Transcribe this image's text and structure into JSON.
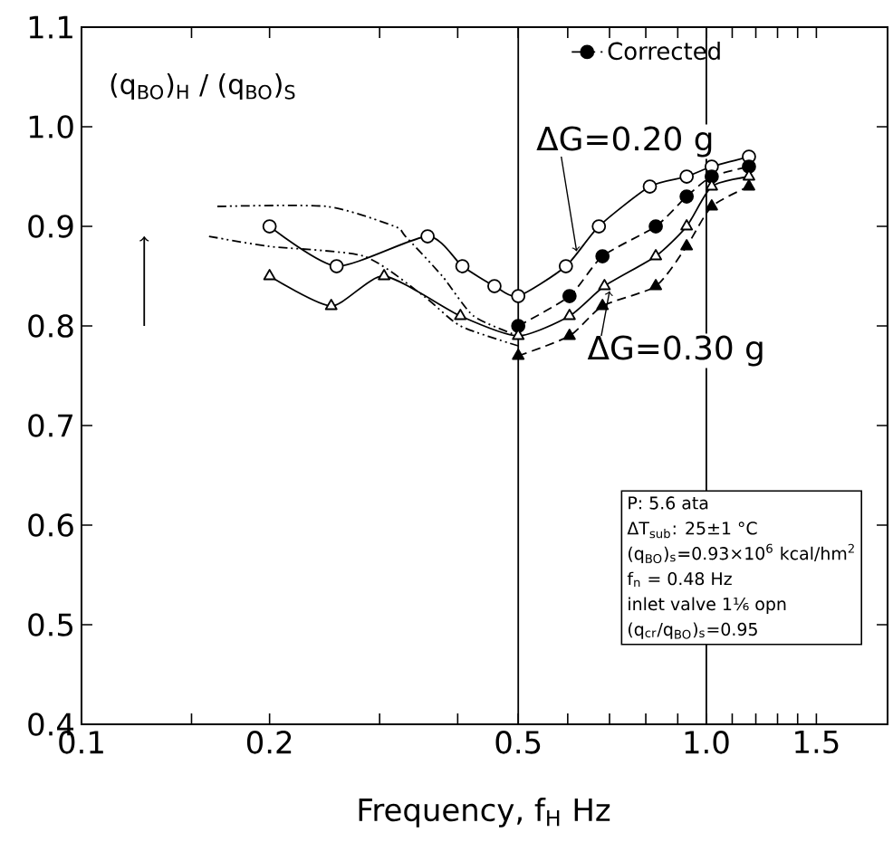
{
  "chart_data": {
    "type": "line",
    "xlabel": "Frequency, f$_{H}$   Hz",
    "ylabel": "(q$_{BO}$)$_{H}$ / (q$_{BO}$)$_{S}$",
    "log": "x",
    "xlim": [
      0.1,
      1.95
    ],
    "ylim": [
      0.4,
      1.1
    ],
    "xticks": [
      {
        "value": 0.1,
        "label": "0.1"
      },
      {
        "value": 0.15,
        "label": null
      },
      {
        "value": 0.2,
        "label": "0.2"
      },
      {
        "value": 0.3,
        "label": null
      },
      {
        "value": 0.4,
        "label": null
      },
      {
        "value": 0.5,
        "label": "0.5"
      },
      {
        "value": 0.6,
        "label": null
      },
      {
        "value": 0.7,
        "label": null
      },
      {
        "value": 0.8,
        "label": null
      },
      {
        "value": 0.9,
        "label": null
      },
      {
        "value": 1,
        "label": "1.0"
      },
      {
        "value": 1.1,
        "label": null
      },
      {
        "value": 1.2,
        "label": null
      },
      {
        "value": 1.3,
        "label": null
      },
      {
        "value": 1.4,
        "label": null
      },
      {
        "value": 1.5,
        "label": "1.5"
      }
    ],
    "yticks": [
      0.4,
      0.5,
      0.6,
      0.7,
      0.8,
      0.9,
      {
        "value": 1,
        "label": "1.0"
      },
      1.1
    ],
    "grid": false,
    "legend": "top",
    "ref_lines": [
      {
        "axis": "x",
        "value": 0.5
      },
      {
        "axis": "x",
        "value": 1
      }
    ],
    "series": [
      {
        "color": "#000000",
        "marker": "circle",
        "line_style": "solid",
        "x": [
          0.2,
          0.256,
          0.358,
          0.407,
          0.458,
          0.5,
          0.596,
          0.673,
          0.812,
          0.93,
          1.02,
          1.17
        ],
        "values": [
          0.9,
          0.86,
          0.89,
          0.86,
          0.84,
          0.83,
          0.86,
          0.9,
          0.94,
          0.95,
          0.96,
          0.97
        ]
      },
      {
        "name": "Corrected",
        "color": "#000000",
        "marker": "circle",
        "line_style": "dashed",
        "x": [
          0.5,
          0.604,
          0.682,
          0.83,
          0.93,
          1.02,
          1.17
        ],
        "values": [
          0.8,
          0.83,
          0.87,
          0.9,
          0.93,
          0.95,
          0.96
        ]
      },
      {
        "color": "#000000",
        "marker": "triangle",
        "line_style": "solid",
        "x": [
          0.2,
          0.251,
          0.305,
          0.404,
          0.5,
          0.604,
          0.687,
          0.83,
          0.93,
          1.02,
          1.17
        ],
        "values": [
          0.85,
          0.82,
          0.85,
          0.81,
          0.79,
          0.81,
          0.84,
          0.87,
          0.9,
          0.94,
          0.95
        ]
      },
      {
        "color": "#000000",
        "marker": "triangle",
        "line_style": "dashed",
        "x": [
          0.5,
          0.604,
          0.682,
          0.83,
          0.93,
          1.02,
          1.17
        ],
        "values": [
          0.77,
          0.79,
          0.82,
          0.84,
          0.88,
          0.92,
          0.94
        ]
      },
      {
        "color": "#000000",
        "marker": "none",
        "line_style": "dotted",
        "x": [
          0.165,
          0.247,
          0.317,
          0.33,
          0.378,
          0.424,
          0.5
        ],
        "values": [
          0.92,
          0.92,
          0.9,
          0.89,
          0.85,
          0.81,
          0.79
        ]
      },
      {
        "color": "#000000",
        "marker": "none",
        "line_style": "dotted",
        "x": [
          0.16,
          0.199,
          0.283,
          0.353,
          0.404,
          0.5
        ],
        "values": [
          0.89,
          0.88,
          0.87,
          0.83,
          0.8,
          0.78
        ]
      }
    ],
    "annotations": [
      {
        "text": "ΔG=0.20 g",
        "x": 0.62,
        "y": 0.875
      },
      {
        "text": "ΔG=0.30 g",
        "x": 0.7,
        "y": 0.835
      },
      "P:  5.6 ata",
      "ΔT$_{sub}$: 25±1 °C",
      "(q$_{BO}$)$_{s}$=0.93×10$^{6}$ kcal/hm$^{2}$",
      "f$_{n}$ = 0.48 Hz",
      "inlet valve 1⅙ opn",
      "(q$_{cr}$/q$_{BO}$)$_{s}$=0.95"
    ]
  }
}
